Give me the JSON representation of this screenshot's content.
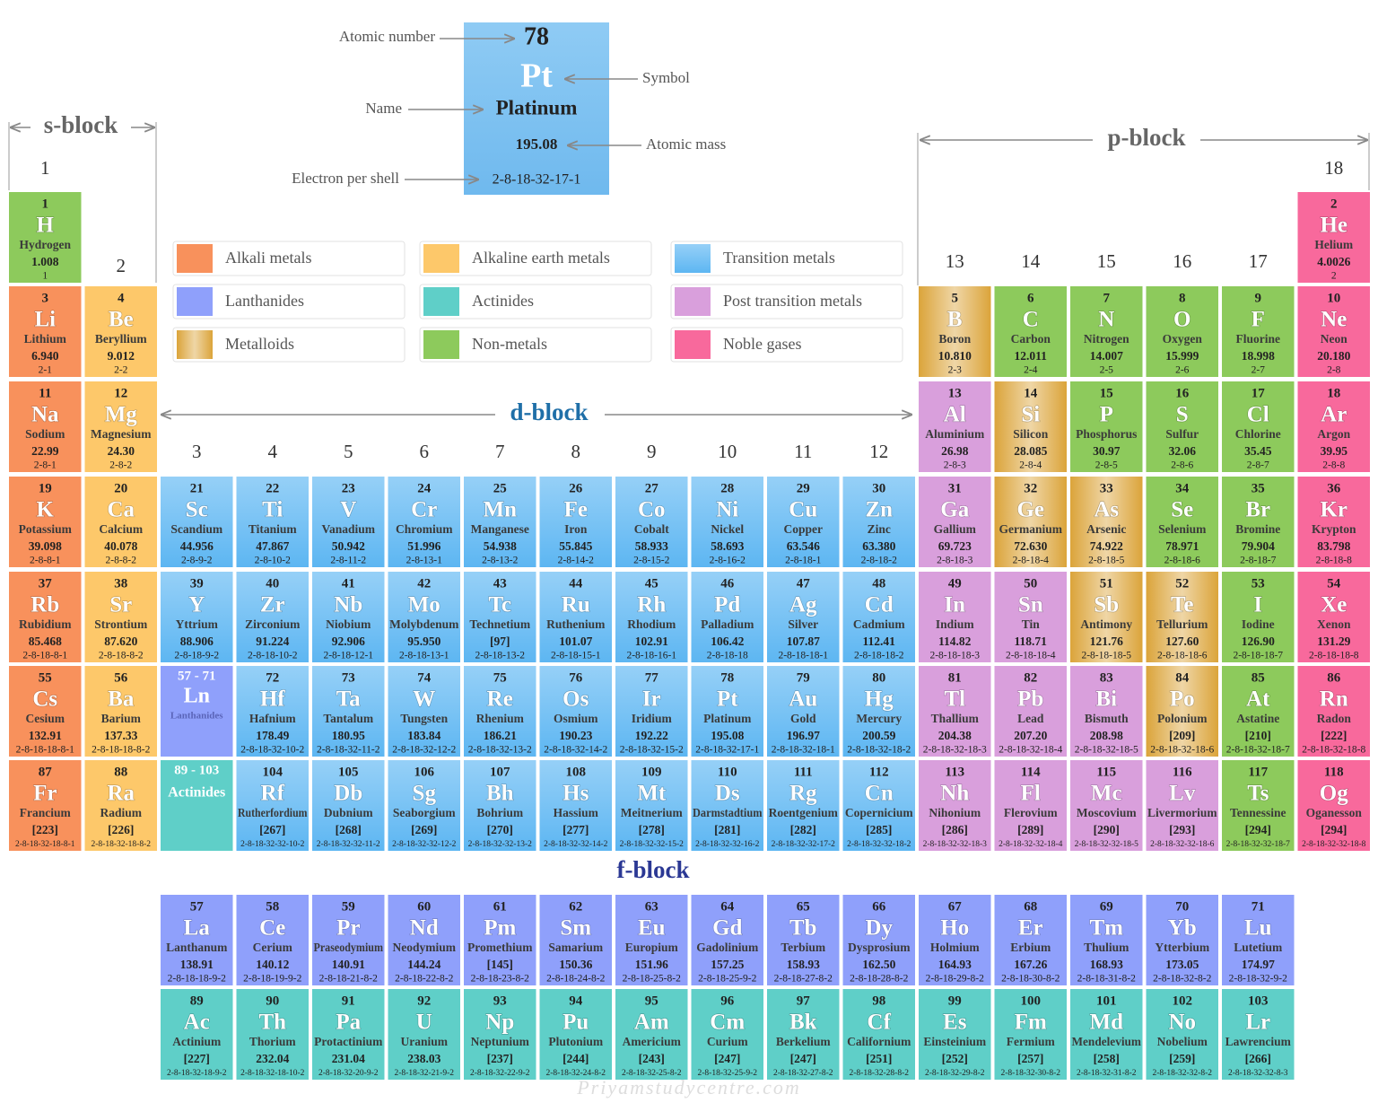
{
  "key": {
    "number": 78,
    "symbol": "Pt",
    "name": "Platinum",
    "mass": "195.08",
    "shells": "2-8-18-32-17-1"
  },
  "key_labels": {
    "number": "Atomic number",
    "symbol": "Symbol",
    "name": "Name",
    "mass": "Atomic mass",
    "shells": "Electron per shell"
  },
  "blocks": {
    "s": "s-block",
    "p": "p-block",
    "d": "d-block",
    "f": "f-block"
  },
  "groups": [
    1,
    2,
    3,
    4,
    5,
    6,
    7,
    8,
    9,
    10,
    11,
    12,
    13,
    14,
    15,
    16,
    17,
    18
  ],
  "legend": [
    {
      "label": "Alkali metals",
      "color": "#f8915c"
    },
    {
      "label": "Alkaline earth metals",
      "color": "#fdc86a"
    },
    {
      "label": "Transition metals",
      "color": "#5db6f2",
      "gradient": "vertical"
    },
    {
      "label": "Lanthanides",
      "color": "#8fa0fb"
    },
    {
      "label": "Actinides",
      "color": "#5fcfc8"
    },
    {
      "label": "Post transition metals",
      "color": "#d99fdc"
    },
    {
      "label": "Metalloids",
      "color": "#dba43a",
      "gradient": "horizontal"
    },
    {
      "label": "Non-metals",
      "color": "#8dca5c"
    },
    {
      "label": "Noble gases",
      "color": "#f8699c"
    }
  ],
  "placeholders": [
    {
      "range": "57 - 71",
      "symbol": "Ln",
      "name": "Lanthanides"
    },
    {
      "range": "89 - 103",
      "name": "Actinides"
    }
  ],
  "elements": [
    {
      "n": 1,
      "s": "H",
      "name": "Hydrogen",
      "mass": "1.008",
      "shells": "1",
      "cat": "Non-metals"
    },
    {
      "n": 2,
      "s": "He",
      "name": "Helium",
      "mass": "4.0026",
      "shells": "2",
      "cat": "Noble gases"
    },
    {
      "n": 3,
      "s": "Li",
      "name": "Lithium",
      "mass": "6.940",
      "shells": "2-1",
      "cat": "Alkali metals"
    },
    {
      "n": 4,
      "s": "Be",
      "name": "Beryllium",
      "mass": "9.012",
      "shells": "2-2",
      "cat": "Alkaline earth metals"
    },
    {
      "n": 5,
      "s": "B",
      "name": "Boron",
      "mass": "10.810",
      "shells": "2-3",
      "cat": "Metalloids"
    },
    {
      "n": 6,
      "s": "C",
      "name": "Carbon",
      "mass": "12.011",
      "shells": "2-4",
      "cat": "Non-metals"
    },
    {
      "n": 7,
      "s": "N",
      "name": "Nitrogen",
      "mass": "14.007",
      "shells": "2-5",
      "cat": "Non-metals"
    },
    {
      "n": 8,
      "s": "O",
      "name": "Oxygen",
      "mass": "15.999",
      "shells": "2-6",
      "cat": "Non-metals"
    },
    {
      "n": 9,
      "s": "F",
      "name": "Fluorine",
      "mass": "18.998",
      "shells": "2-7",
      "cat": "Non-metals"
    },
    {
      "n": 10,
      "s": "Ne",
      "name": "Neon",
      "mass": "20.180",
      "shells": "2-8",
      "cat": "Noble gases"
    },
    {
      "n": 11,
      "s": "Na",
      "name": "Sodium",
      "mass": "22.99",
      "shells": "2-8-1",
      "cat": "Alkali metals"
    },
    {
      "n": 12,
      "s": "Mg",
      "name": "Magnesium",
      "mass": "24.30",
      "shells": "2-8-2",
      "cat": "Alkaline earth metals"
    },
    {
      "n": 13,
      "s": "Al",
      "name": "Aluminium",
      "mass": "26.98",
      "shells": "2-8-3",
      "cat": "Post transition metals"
    },
    {
      "n": 14,
      "s": "Si",
      "name": "Silicon",
      "mass": "28.085",
      "shells": "2-8-4",
      "cat": "Metalloids"
    },
    {
      "n": 15,
      "s": "P",
      "name": "Phosphorus",
      "mass": "30.97",
      "shells": "2-8-5",
      "cat": "Non-metals"
    },
    {
      "n": 16,
      "s": "S",
      "name": "Sulfur",
      "mass": "32.06",
      "shells": "2-8-6",
      "cat": "Non-metals"
    },
    {
      "n": 17,
      "s": "Cl",
      "name": "Chlorine",
      "mass": "35.45",
      "shells": "2-8-7",
      "cat": "Non-metals"
    },
    {
      "n": 18,
      "s": "Ar",
      "name": "Argon",
      "mass": "39.95",
      "shells": "2-8-8",
      "cat": "Noble gases"
    },
    {
      "n": 19,
      "s": "K",
      "name": "Potassium",
      "mass": "39.098",
      "shells": "2-8-8-1",
      "cat": "Alkali metals"
    },
    {
      "n": 20,
      "s": "Ca",
      "name": "Calcium",
      "mass": "40.078",
      "shells": "2-8-8-2",
      "cat": "Alkaline earth metals"
    },
    {
      "n": 21,
      "s": "Sc",
      "name": "Scandium",
      "mass": "44.956",
      "shells": "2-8-9-2",
      "cat": "Transition metals"
    },
    {
      "n": 22,
      "s": "Ti",
      "name": "Titanium",
      "mass": "47.867",
      "shells": "2-8-10-2",
      "cat": "Transition metals"
    },
    {
      "n": 23,
      "s": "V",
      "name": "Vanadium",
      "mass": "50.942",
      "shells": "2-8-11-2",
      "cat": "Transition metals"
    },
    {
      "n": 24,
      "s": "Cr",
      "name": "Chromium",
      "mass": "51.996",
      "shells": "2-8-13-1",
      "cat": "Transition metals"
    },
    {
      "n": 25,
      "s": "Mn",
      "name": "Manganese",
      "mass": "54.938",
      "shells": "2-8-13-2",
      "cat": "Transition metals"
    },
    {
      "n": 26,
      "s": "Fe",
      "name": "Iron",
      "mass": "55.845",
      "shells": "2-8-14-2",
      "cat": "Transition metals"
    },
    {
      "n": 27,
      "s": "Co",
      "name": "Cobalt",
      "mass": "58.933",
      "shells": "2-8-15-2",
      "cat": "Transition metals"
    },
    {
      "n": 28,
      "s": "Ni",
      "name": "Nickel",
      "mass": "58.693",
      "shells": "2-8-16-2",
      "cat": "Transition metals"
    },
    {
      "n": 29,
      "s": "Cu",
      "name": "Copper",
      "mass": "63.546",
      "shells": "2-8-18-1",
      "cat": "Transition metals"
    },
    {
      "n": 30,
      "s": "Zn",
      "name": "Zinc",
      "mass": "63.380",
      "shells": "2-8-18-2",
      "cat": "Transition metals"
    },
    {
      "n": 31,
      "s": "Ga",
      "name": "Gallium",
      "mass": "69.723",
      "shells": "2-8-18-3",
      "cat": "Post transition metals"
    },
    {
      "n": 32,
      "s": "Ge",
      "name": "Germanium",
      "mass": "72.630",
      "shells": "2-8-18-4",
      "cat": "Metalloids"
    },
    {
      "n": 33,
      "s": "As",
      "name": "Arsenic",
      "mass": "74.922",
      "shells": "2-8-18-5",
      "cat": "Metalloids"
    },
    {
      "n": 34,
      "s": "Se",
      "name": "Selenium",
      "mass": "78.971",
      "shells": "2-8-18-6",
      "cat": "Non-metals"
    },
    {
      "n": 35,
      "s": "Br",
      "name": "Bromine",
      "mass": "79.904",
      "shells": "2-8-18-7",
      "cat": "Non-metals"
    },
    {
      "n": 36,
      "s": "Kr",
      "name": "Krypton",
      "mass": "83.798",
      "shells": "2-8-18-8",
      "cat": "Noble gases"
    },
    {
      "n": 37,
      "s": "Rb",
      "name": "Rubidium",
      "mass": "85.468",
      "shells": "2-8-18-8-1",
      "cat": "Alkali metals"
    },
    {
      "n": 38,
      "s": "Sr",
      "name": "Strontium",
      "mass": "87.620",
      "shells": "2-8-18-8-2",
      "cat": "Alkaline earth metals"
    },
    {
      "n": 39,
      "s": "Y",
      "name": "Yttrium",
      "mass": "88.906",
      "shells": "2-8-18-9-2",
      "cat": "Transition metals"
    },
    {
      "n": 40,
      "s": "Zr",
      "name": "Zirconium",
      "mass": "91.224",
      "shells": "2-8-18-10-2",
      "cat": "Transition metals"
    },
    {
      "n": 41,
      "s": "Nb",
      "name": "Niobium",
      "mass": "92.906",
      "shells": "2-8-18-12-1",
      "cat": "Transition metals"
    },
    {
      "n": 42,
      "s": "Mo",
      "name": "Molybdenum",
      "mass": "95.950",
      "shells": "2-8-18-13-1",
      "cat": "Transition metals"
    },
    {
      "n": 43,
      "s": "Tc",
      "name": "Technetium",
      "mass": "[97]",
      "shells": "2-8-18-13-2",
      "cat": "Transition metals"
    },
    {
      "n": 44,
      "s": "Ru",
      "name": "Ruthenium",
      "mass": "101.07",
      "shells": "2-8-18-15-1",
      "cat": "Transition metals"
    },
    {
      "n": 45,
      "s": "Rh",
      "name": "Rhodium",
      "mass": "102.91",
      "shells": "2-8-18-16-1",
      "cat": "Transition metals"
    },
    {
      "n": 46,
      "s": "Pd",
      "name": "Palladium",
      "mass": "106.42",
      "shells": "2-8-18-18",
      "cat": "Transition metals"
    },
    {
      "n": 47,
      "s": "Ag",
      "name": "Silver",
      "mass": "107.87",
      "shells": "2-8-18-18-1",
      "cat": "Transition metals"
    },
    {
      "n": 48,
      "s": "Cd",
      "name": "Cadmium",
      "mass": "112.41",
      "shells": "2-8-18-18-2",
      "cat": "Transition metals"
    },
    {
      "n": 49,
      "s": "In",
      "name": "Indium",
      "mass": "114.82",
      "shells": "2-8-18-18-3",
      "cat": "Post transition metals"
    },
    {
      "n": 50,
      "s": "Sn",
      "name": "Tin",
      "mass": "118.71",
      "shells": "2-8-18-18-4",
      "cat": "Post transition metals"
    },
    {
      "n": 51,
      "s": "Sb",
      "name": "Antimony",
      "mass": "121.76",
      "shells": "2-8-18-18-5",
      "cat": "Metalloids"
    },
    {
      "n": 52,
      "s": "Te",
      "name": "Tellurium",
      "mass": "127.60",
      "shells": "2-8-18-18-6",
      "cat": "Metalloids"
    },
    {
      "n": 53,
      "s": "I",
      "name": "Iodine",
      "mass": "126.90",
      "shells": "2-8-18-18-7",
      "cat": "Non-metals"
    },
    {
      "n": 54,
      "s": "Xe",
      "name": "Xenon",
      "mass": "131.29",
      "shells": "2-8-18-18-8",
      "cat": "Noble gases"
    },
    {
      "n": 55,
      "s": "Cs",
      "name": "Cesium",
      "mass": "132.91",
      "shells": "2-8-18-18-8-1",
      "cat": "Alkali metals"
    },
    {
      "n": 56,
      "s": "Ba",
      "name": "Barium",
      "mass": "137.33",
      "shells": "2-8-18-18-8-2",
      "cat": "Alkaline earth metals"
    },
    {
      "n": 57,
      "s": "La",
      "name": "Lanthanum",
      "mass": "138.91",
      "shells": "2-8-18-18-9-2",
      "cat": "Lanthanides"
    },
    {
      "n": 58,
      "s": "Ce",
      "name": "Cerium",
      "mass": "140.12",
      "shells": "2-8-18-19-9-2",
      "cat": "Lanthanides"
    },
    {
      "n": 59,
      "s": "Pr",
      "name": "Praseodymium",
      "mass": "140.91",
      "shells": "2-8-18-21-8-2",
      "cat": "Lanthanides"
    },
    {
      "n": 60,
      "s": "Nd",
      "name": "Neodymium",
      "mass": "144.24",
      "shells": "2-8-18-22-8-2",
      "cat": "Lanthanides"
    },
    {
      "n": 61,
      "s": "Pm",
      "name": "Promethium",
      "mass": "[145]",
      "shells": "2-8-18-23-8-2",
      "cat": "Lanthanides"
    },
    {
      "n": 62,
      "s": "Sm",
      "name": "Samarium",
      "mass": "150.36",
      "shells": "2-8-18-24-8-2",
      "cat": "Lanthanides"
    },
    {
      "n": 63,
      "s": "Eu",
      "name": "Europium",
      "mass": "151.96",
      "shells": "2-8-18-25-8-2",
      "cat": "Lanthanides"
    },
    {
      "n": 64,
      "s": "Gd",
      "name": "Gadolinium",
      "mass": "157.25",
      "shells": "2-8-18-25-9-2",
      "cat": "Lanthanides"
    },
    {
      "n": 65,
      "s": "Tb",
      "name": "Terbium",
      "mass": "158.93",
      "shells": "2-8-18-27-8-2",
      "cat": "Lanthanides"
    },
    {
      "n": 66,
      "s": "Dy",
      "name": "Dysprosium",
      "mass": "162.50",
      "shells": "2-8-18-28-8-2",
      "cat": "Lanthanides"
    },
    {
      "n": 67,
      "s": "Ho",
      "name": "Holmium",
      "mass": "164.93",
      "shells": "2-8-18-29-8-2",
      "cat": "Lanthanides"
    },
    {
      "n": 68,
      "s": "Er",
      "name": "Erbium",
      "mass": "167.26",
      "shells": "2-8-18-30-8-2",
      "cat": "Lanthanides"
    },
    {
      "n": 69,
      "s": "Tm",
      "name": "Thulium",
      "mass": "168.93",
      "shells": "2-8-18-31-8-2",
      "cat": "Lanthanides"
    },
    {
      "n": 70,
      "s": "Yb",
      "name": "Ytterbium",
      "mass": "173.05",
      "shells": "2-8-18-32-8-2",
      "cat": "Lanthanides"
    },
    {
      "n": 71,
      "s": "Lu",
      "name": "Lutetium",
      "mass": "174.97",
      "shells": "2-8-18-32-9-2",
      "cat": "Lanthanides"
    },
    {
      "n": 72,
      "s": "Hf",
      "name": "Hafnium",
      "mass": "178.49",
      "shells": "2-8-18-32-10-2",
      "cat": "Transition metals"
    },
    {
      "n": 73,
      "s": "Ta",
      "name": "Tantalum",
      "mass": "180.95",
      "shells": "2-8-18-32-11-2",
      "cat": "Transition metals"
    },
    {
      "n": 74,
      "s": "W",
      "name": "Tungsten",
      "mass": "183.84",
      "shells": "2-8-18-32-12-2",
      "cat": "Transition metals"
    },
    {
      "n": 75,
      "s": "Re",
      "name": "Rhenium",
      "mass": "186.21",
      "shells": "2-8-18-32-13-2",
      "cat": "Transition metals"
    },
    {
      "n": 76,
      "s": "Os",
      "name": "Osmium",
      "mass": "190.23",
      "shells": "2-8-18-32-14-2",
      "cat": "Transition metals"
    },
    {
      "n": 77,
      "s": "Ir",
      "name": "Iridium",
      "mass": "192.22",
      "shells": "2-8-18-32-15-2",
      "cat": "Transition metals"
    },
    {
      "n": 78,
      "s": "Pt",
      "name": "Platinum",
      "mass": "195.08",
      "shells": "2-8-18-32-17-1",
      "cat": "Transition metals"
    },
    {
      "n": 79,
      "s": "Au",
      "name": "Gold",
      "mass": "196.97",
      "shells": "2-8-18-32-18-1",
      "cat": "Transition metals"
    },
    {
      "n": 80,
      "s": "Hg",
      "name": "Mercury",
      "mass": "200.59",
      "shells": "2-8-18-32-18-2",
      "cat": "Transition metals"
    },
    {
      "n": 81,
      "s": "Tl",
      "name": "Thallium",
      "mass": "204.38",
      "shells": "2-8-18-32-18-3",
      "cat": "Post transition metals"
    },
    {
      "n": 82,
      "s": "Pb",
      "name": "Lead",
      "mass": "207.20",
      "shells": "2-8-18-32-18-4",
      "cat": "Post transition metals"
    },
    {
      "n": 83,
      "s": "Bi",
      "name": "Bismuth",
      "mass": "208.98",
      "shells": "2-8-18-32-18-5",
      "cat": "Post transition metals"
    },
    {
      "n": 84,
      "s": "Po",
      "name": "Polonium",
      "mass": "[209]",
      "shells": "2-8-18-32-18-6",
      "cat": "Metalloids"
    },
    {
      "n": 85,
      "s": "At",
      "name": "Astatine",
      "mass": "[210]",
      "shells": "2-8-18-32-18-7",
      "cat": "Non-metals"
    },
    {
      "n": 86,
      "s": "Rn",
      "name": "Radon",
      "mass": "[222]",
      "shells": "2-8-18-32-18-8",
      "cat": "Noble gases"
    },
    {
      "n": 87,
      "s": "Fr",
      "name": "Francium",
      "mass": "[223]",
      "shells": "2-8-18-32-18-8-1",
      "cat": "Alkali metals"
    },
    {
      "n": 88,
      "s": "Ra",
      "name": "Radium",
      "mass": "[226]",
      "shells": "2-8-18-32-18-8-2",
      "cat": "Alkaline earth metals"
    },
    {
      "n": 89,
      "s": "Ac",
      "name": "Actinium",
      "mass": "[227]",
      "shells": "2-8-18-32-18-9-2",
      "cat": "Actinides"
    },
    {
      "n": 90,
      "s": "Th",
      "name": "Thorium",
      "mass": "232.04",
      "shells": "2-8-18-32-18-10-2",
      "cat": "Actinides"
    },
    {
      "n": 91,
      "s": "Pa",
      "name": "Protactinium",
      "mass": "231.04",
      "shells": "2-8-18-32-20-9-2",
      "cat": "Actinides"
    },
    {
      "n": 92,
      "s": "U",
      "name": "Uranium",
      "mass": "238.03",
      "shells": "2-8-18-32-21-9-2",
      "cat": "Actinides"
    },
    {
      "n": 93,
      "s": "Np",
      "name": "Neptunium",
      "mass": "[237]",
      "shells": "2-8-18-32-22-9-2",
      "cat": "Actinides"
    },
    {
      "n": 94,
      "s": "Pu",
      "name": "Plutonium",
      "mass": "[244]",
      "shells": "2-8-18-32-24-8-2",
      "cat": "Actinides"
    },
    {
      "n": 95,
      "s": "Am",
      "name": "Americium",
      "mass": "[243]",
      "shells": "2-8-18-32-25-8-2",
      "cat": "Actinides"
    },
    {
      "n": 96,
      "s": "Cm",
      "name": "Curium",
      "mass": "[247]",
      "shells": "2-8-18-32-25-9-2",
      "cat": "Actinides"
    },
    {
      "n": 97,
      "s": "Bk",
      "name": "Berkelium",
      "mass": "[247]",
      "shells": "2-8-18-32-27-8-2",
      "cat": "Actinides"
    },
    {
      "n": 98,
      "s": "Cf",
      "name": "Californium",
      "mass": "[251]",
      "shells": "2-8-18-32-28-8-2",
      "cat": "Actinides"
    },
    {
      "n": 99,
      "s": "Es",
      "name": "Einsteinium",
      "mass": "[252]",
      "shells": "2-8-18-32-29-8-2",
      "cat": "Actinides"
    },
    {
      "n": 100,
      "s": "Fm",
      "name": "Fermium",
      "mass": "[257]",
      "shells": "2-8-18-32-30-8-2",
      "cat": "Actinides"
    },
    {
      "n": 101,
      "s": "Md",
      "name": "Mendelevium",
      "mass": "[258]",
      "shells": "2-8-18-32-31-8-2",
      "cat": "Actinides"
    },
    {
      "n": 102,
      "s": "No",
      "name": "Nobelium",
      "mass": "[259]",
      "shells": "2-8-18-32-32-8-2",
      "cat": "Actinides"
    },
    {
      "n": 103,
      "s": "Lr",
      "name": "Lawrencium",
      "mass": "[266]",
      "shells": "2-8-18-32-32-8-3",
      "cat": "Actinides"
    },
    {
      "n": 104,
      "s": "Rf",
      "name": "Rutherfordium",
      "mass": "[267]",
      "shells": "2-8-18-32-32-10-2",
      "cat": "Transition metals"
    },
    {
      "n": 105,
      "s": "Db",
      "name": "Dubnium",
      "mass": "[268]",
      "shells": "2-8-18-32-32-11-2",
      "cat": "Transition metals"
    },
    {
      "n": 106,
      "s": "Sg",
      "name": "Seaborgium",
      "mass": "[269]",
      "shells": "2-8-18-32-32-12-2",
      "cat": "Transition metals"
    },
    {
      "n": 107,
      "s": "Bh",
      "name": "Bohrium",
      "mass": "[270]",
      "shells": "2-8-18-32-32-13-2",
      "cat": "Transition metals"
    },
    {
      "n": 108,
      "s": "Hs",
      "name": "Hassium",
      "mass": "[277]",
      "shells": "2-8-18-32-32-14-2",
      "cat": "Transition metals"
    },
    {
      "n": 109,
      "s": "Mt",
      "name": "Meitnerium",
      "mass": "[278]",
      "shells": "2-8-18-32-32-15-2",
      "cat": "Transition metals"
    },
    {
      "n": 110,
      "s": "Ds",
      "name": "Darmstadtium",
      "mass": "[281]",
      "shells": "2-8-18-32-32-16-2",
      "cat": "Transition metals"
    },
    {
      "n": 111,
      "s": "Rg",
      "name": "Roentgenium",
      "mass": "[282]",
      "shells": "2-8-18-32-32-17-2",
      "cat": "Transition metals"
    },
    {
      "n": 112,
      "s": "Cn",
      "name": "Copernicium",
      "mass": "[285]",
      "shells": "2-8-18-32-32-18-2",
      "cat": "Transition metals"
    },
    {
      "n": 113,
      "s": "Nh",
      "name": "Nihonium",
      "mass": "[286]",
      "shells": "2-8-18-32-32-18-3",
      "cat": "Post transition metals"
    },
    {
      "n": 114,
      "s": "Fl",
      "name": "Flerovium",
      "mass": "[289]",
      "shells": "2-8-18-32-32-18-4",
      "cat": "Post transition metals"
    },
    {
      "n": 115,
      "s": "Mc",
      "name": "Moscovium",
      "mass": "[290]",
      "shells": "2-8-18-32-32-18-5",
      "cat": "Post transition metals"
    },
    {
      "n": 116,
      "s": "Lv",
      "name": "Livermorium",
      "mass": "[293]",
      "shells": "2-8-18-32-32-18-6",
      "cat": "Post transition metals"
    },
    {
      "n": 117,
      "s": "Ts",
      "name": "Tennessine",
      "mass": "[294]",
      "shells": "2-8-18-32-32-18-7",
      "cat": "Non-metals"
    },
    {
      "n": 118,
      "s": "Og",
      "name": "Oganesson",
      "mass": "[294]",
      "shells": "2-8-18-32-32-18-8",
      "cat": "Noble gases"
    }
  ],
  "watermark": "Priyamstudycentre.com"
}
